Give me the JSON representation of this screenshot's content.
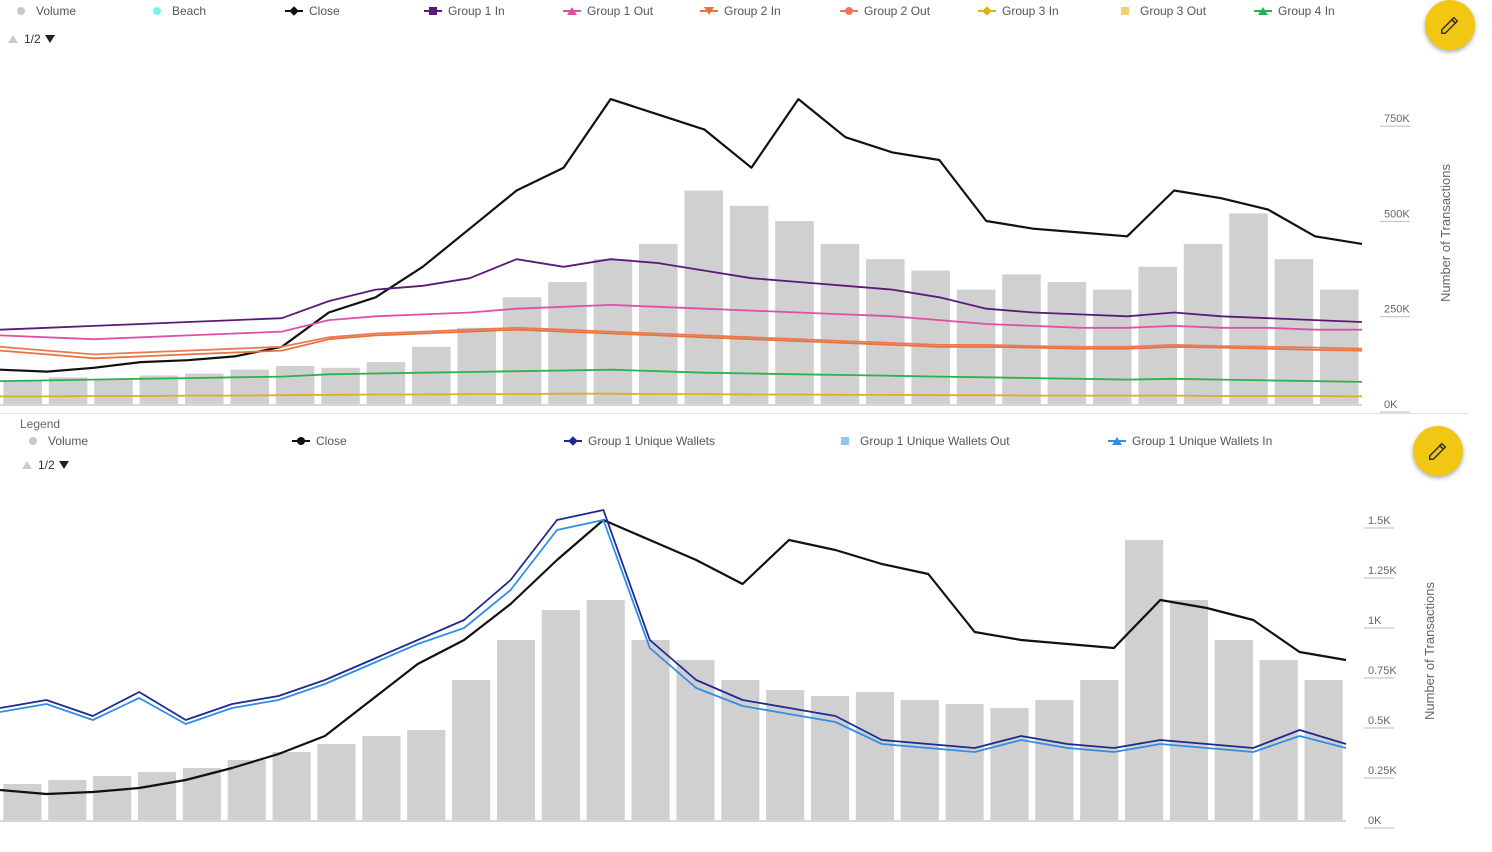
{
  "top": {
    "legend": [
      {
        "label": "Volume",
        "color": "#c8c8c8",
        "marker": "circle",
        "line": false
      },
      {
        "label": "Beach",
        "color": "#7ff0f0",
        "marker": "circle",
        "line": false
      },
      {
        "label": "Close",
        "color": "#111111",
        "marker": "diamond",
        "line": true
      },
      {
        "label": "Group 1 In",
        "color": "#5b1a78",
        "marker": "square",
        "line": true
      },
      {
        "label": "Group 1 Out",
        "color": "#e04fa6",
        "marker": "triangle",
        "line": true
      },
      {
        "label": "Group 2 In",
        "color": "#e8743b",
        "marker": "triangle-down",
        "line": true
      },
      {
        "label": "Group 2 Out",
        "color": "#e87a5a",
        "marker": "circle",
        "line": true
      },
      {
        "label": "Group 3 In",
        "color": "#d9b21f",
        "marker": "diamond",
        "line": true
      },
      {
        "label": "Group 3 Out",
        "color": "#f0d070",
        "marker": "square",
        "line": false
      },
      {
        "label": "Group 4 In",
        "color": "#2bb24c",
        "marker": "triangle",
        "line": true
      }
    ],
    "pager": "1/2",
    "edit_icon": "pencil-icon"
  },
  "bottom": {
    "legend_caption": "Legend",
    "legend": [
      {
        "label": "Volume",
        "color": "#c8c8c8",
        "marker": "circle",
        "line": false
      },
      {
        "label": "Close",
        "color": "#111111",
        "marker": "circle",
        "line": true
      },
      {
        "label": "Group 1 Unique Wallets",
        "color": "#1f2a8f",
        "marker": "diamond",
        "line": true
      },
      {
        "label": "Group 1 Unique Wallets Out",
        "color": "#8ec8f2",
        "marker": "square",
        "line": false
      },
      {
        "label": "Group 1 Unique Wallets In",
        "color": "#2f8fe6",
        "marker": "triangle",
        "line": true
      }
    ],
    "pager": "1/2",
    "edit_icon": "pencil-icon"
  },
  "chart_data": [
    {
      "type": "line",
      "ylabel": "Number of Transactions",
      "yticks": [
        "0K",
        "250K",
        "500K",
        "750K"
      ],
      "ylim": [
        0,
        850000
      ],
      "grid": false,
      "legend_position": "top",
      "series": [
        {
          "name": "Volume",
          "type": "bar",
          "color": "#c8c8c8",
          "values": [
            60000,
            70000,
            65000,
            75000,
            80000,
            90000,
            100000,
            95000,
            110000,
            150000,
            200000,
            280000,
            320000,
            380000,
            420000,
            560000,
            520000,
            480000,
            420000,
            380000,
            350000,
            300000,
            340000,
            320000,
            300000,
            360000,
            420000,
            500000,
            380000,
            300000
          ]
        },
        {
          "name": "Close",
          "color": "#111111",
          "values": [
            90000,
            85000,
            95000,
            110000,
            115000,
            125000,
            150000,
            240000,
            280000,
            360000,
            460000,
            560000,
            620000,
            800000,
            760000,
            720000,
            620000,
            800000,
            700000,
            660000,
            640000,
            480000,
            460000,
            450000,
            440000,
            560000,
            540000,
            510000,
            440000,
            420000
          ]
        },
        {
          "name": "Group 1 In",
          "color": "#5b1a78",
          "values": [
            195000,
            200000,
            205000,
            210000,
            215000,
            220000,
            225000,
            270000,
            300000,
            310000,
            330000,
            380000,
            360000,
            380000,
            370000,
            350000,
            330000,
            320000,
            310000,
            300000,
            280000,
            250000,
            240000,
            235000,
            230000,
            240000,
            230000,
            225000,
            220000,
            215000
          ]
        },
        {
          "name": "Group 1 Out",
          "color": "#e04fa6",
          "values": [
            180000,
            175000,
            170000,
            175000,
            180000,
            185000,
            190000,
            220000,
            230000,
            235000,
            240000,
            250000,
            255000,
            260000,
            255000,
            250000,
            245000,
            240000,
            235000,
            230000,
            220000,
            210000,
            205000,
            200000,
            200000,
            205000,
            200000,
            200000,
            195000,
            195000
          ]
        },
        {
          "name": "Group 2 In",
          "color": "#e8743b",
          "values": [
            140000,
            130000,
            120000,
            125000,
            130000,
            135000,
            140000,
            170000,
            180000,
            185000,
            190000,
            195000,
            190000,
            185000,
            180000,
            175000,
            170000,
            165000,
            160000,
            155000,
            150000,
            150000,
            148000,
            145000,
            145000,
            150000,
            148000,
            145000,
            142000,
            140000
          ]
        },
        {
          "name": "Group 2 Out",
          "color": "#e87a5a",
          "values": [
            150000,
            140000,
            130000,
            135000,
            140000,
            145000,
            150000,
            175000,
            185000,
            190000,
            195000,
            200000,
            195000,
            190000,
            185000,
            180000,
            175000,
            170000,
            165000,
            160000,
            155000,
            155000,
            152000,
            150000,
            150000,
            155000,
            152000,
            150000,
            148000,
            145000
          ]
        },
        {
          "name": "Group 3 In",
          "color": "#d9b21f",
          "values": [
            20000,
            20000,
            21000,
            21000,
            22000,
            22000,
            23000,
            24000,
            25000,
            25000,
            26000,
            26000,
            27000,
            27000,
            26000,
            26000,
            25000,
            25000,
            24000,
            24000,
            23000,
            23000,
            22000,
            22000,
            22000,
            22000,
            21000,
            21000,
            21000,
            20000
          ]
        },
        {
          "name": "Group 4 In",
          "color": "#2bb24c",
          "values": [
            60000,
            62000,
            64000,
            66000,
            68000,
            70000,
            72000,
            78000,
            80000,
            82000,
            84000,
            86000,
            88000,
            90000,
            86000,
            82000,
            80000,
            78000,
            76000,
            74000,
            72000,
            70000,
            68000,
            66000,
            64000,
            66000,
            64000,
            62000,
            60000,
            58000
          ]
        }
      ]
    },
    {
      "type": "line",
      "ylabel": "Number of Transactions",
      "yticks": [
        "0K",
        "0.25K",
        "0.5K",
        "0.75K",
        "1K",
        "1.25K",
        "1.5K"
      ],
      "ylim": [
        0,
        1600
      ],
      "grid": false,
      "legend_position": "top",
      "series": [
        {
          "name": "Volume",
          "type": "bar",
          "color": "#c8c8c8",
          "values": [
            180,
            200,
            220,
            240,
            260,
            300,
            340,
            380,
            420,
            450,
            700,
            900,
            1050,
            1100,
            900,
            800,
            700,
            650,
            620,
            640,
            600,
            580,
            560,
            600,
            700,
            1400,
            1100,
            900,
            800,
            700
          ]
        },
        {
          "name": "Close",
          "color": "#111111",
          "values": [
            150,
            130,
            140,
            160,
            200,
            260,
            330,
            420,
            600,
            780,
            900,
            1080,
            1300,
            1500,
            1400,
            1300,
            1180,
            1400,
            1350,
            1280,
            1230,
            940,
            900,
            880,
            860,
            1100,
            1060,
            1000,
            840,
            800
          ]
        },
        {
          "name": "Group 1 Unique Wallets",
          "color": "#1f2a8f",
          "values": [
            560,
            600,
            520,
            640,
            500,
            580,
            620,
            700,
            800,
            900,
            1000,
            1200,
            1500,
            1550,
            900,
            700,
            600,
            560,
            520,
            400,
            380,
            360,
            420,
            380,
            360,
            400,
            380,
            360,
            450,
            380
          ]
        },
        {
          "name": "Group 1 Unique Wallets In",
          "color": "#2f8fe6",
          "values": [
            540,
            580,
            500,
            610,
            480,
            560,
            600,
            680,
            780,
            880,
            960,
            1150,
            1450,
            1500,
            860,
            660,
            570,
            530,
            490,
            380,
            360,
            340,
            400,
            360,
            340,
            380,
            360,
            340,
            420,
            360
          ]
        }
      ]
    }
  ]
}
